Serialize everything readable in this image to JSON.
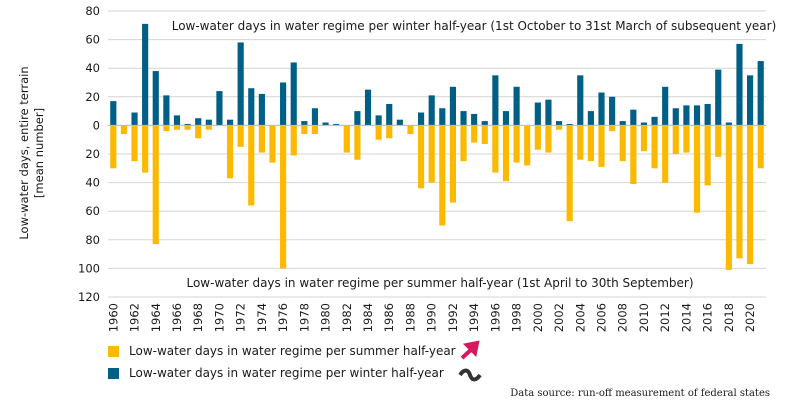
{
  "chart_data": {
    "type": "bar",
    "ylabel": "Low-water days, entire terrain [mean number]",
    "ylim": [
      -120,
      80
    ],
    "y_ticks": [
      {
        "value": 80,
        "label": "80"
      },
      {
        "value": 60,
        "label": "60"
      },
      {
        "value": 40,
        "label": "40"
      },
      {
        "value": 20,
        "label": "20"
      },
      {
        "value": 0,
        "label": "0"
      },
      {
        "value": -20,
        "label": "20"
      },
      {
        "value": -40,
        "label": "40"
      },
      {
        "value": -60,
        "label": "60"
      },
      {
        "value": -80,
        "label": "80"
      },
      {
        "value": -100,
        "label": "100"
      },
      {
        "value": -120,
        "label": "120"
      }
    ],
    "categories": [
      1960,
      1961,
      1962,
      1963,
      1964,
      1965,
      1966,
      1967,
      1968,
      1969,
      1970,
      1971,
      1972,
      1973,
      1974,
      1975,
      1976,
      1977,
      1978,
      1979,
      1980,
      1981,
      1982,
      1983,
      1984,
      1985,
      1986,
      1987,
      1988,
      1989,
      1990,
      1991,
      1992,
      1993,
      1994,
      1995,
      1996,
      1997,
      1998,
      1999,
      2000,
      2001,
      2002,
      2003,
      2004,
      2005,
      2006,
      2007,
      2008,
      2009,
      2010,
      2011,
      2012,
      2013,
      2014,
      2015,
      2016,
      2017,
      2018,
      2019,
      2020,
      2021
    ],
    "x_tick_labels": [
      "1960",
      "1962",
      "1964",
      "1966",
      "1968",
      "1970",
      "1972",
      "1974",
      "1976",
      "1978",
      "1980",
      "1982",
      "1984",
      "1986",
      "1988",
      "1990",
      "1992",
      "1994",
      "1996",
      "1998",
      "2000",
      "2002",
      "2004",
      "2006",
      "2008",
      "2010",
      "2012",
      "2014",
      "2016",
      "2018",
      "2020"
    ],
    "series": [
      {
        "name": "Low-water days in water regime per winter half-year",
        "color": "#005f85",
        "values": [
          17,
          0,
          9,
          71,
          38,
          21,
          7,
          1,
          5,
          4,
          24,
          4,
          58,
          26,
          22,
          0,
          30,
          44,
          3,
          12,
          2,
          1,
          0,
          10,
          25,
          7,
          15,
          4,
          0,
          9,
          21,
          12,
          27,
          10,
          8,
          3,
          35,
          10,
          27,
          0,
          16,
          18,
          3,
          1,
          35,
          10,
          23,
          20,
          3,
          11,
          2,
          6,
          27,
          12,
          14,
          14,
          15,
          39,
          2,
          57,
          35,
          45
        ]
      },
      {
        "name": "Low-water days in water regime per summer half-year",
        "color": "#fbb900",
        "values": [
          -30,
          -6,
          -25,
          -33,
          -83,
          -4,
          -3,
          -3,
          -9,
          -3,
          0,
          -37,
          -15,
          -56,
          -19,
          -26,
          -100,
          -21,
          -6,
          -6,
          0,
          0,
          -19,
          -24,
          0,
          -10,
          -9,
          0,
          -6,
          -44,
          -40,
          -70,
          -54,
          -25,
          -12,
          -13,
          -33,
          -39,
          -26,
          -28,
          -17,
          -19,
          -3,
          -67,
          -24,
          -25,
          -29,
          -4,
          -25,
          -41,
          -18,
          -30,
          -40,
          -20,
          -19,
          -61,
          -42,
          -22,
          -101,
          -93,
          -97,
          -30
        ]
      }
    ],
    "annotations": {
      "winter_banner": "Low-water days in water regime per winter half-year (1st October to 31st March of subsequent year)",
      "summer_banner": "Low-water days in water regime per summer half-year (1st April to 30th September)"
    }
  },
  "legend": {
    "summer": {
      "label": "Low-water days in water regime per summer half-year",
      "color": "#fbb900",
      "trend_icon": "trend-up-arrow-icon",
      "trend_color": "#d6195a"
    },
    "winter": {
      "label": "Low-water days in water regime per winter half-year",
      "color": "#005f85",
      "trend_icon": "trend-sideways-wave-icon",
      "trend_color": "#333333"
    }
  },
  "source": "Data source: run-off measurement of federal states"
}
